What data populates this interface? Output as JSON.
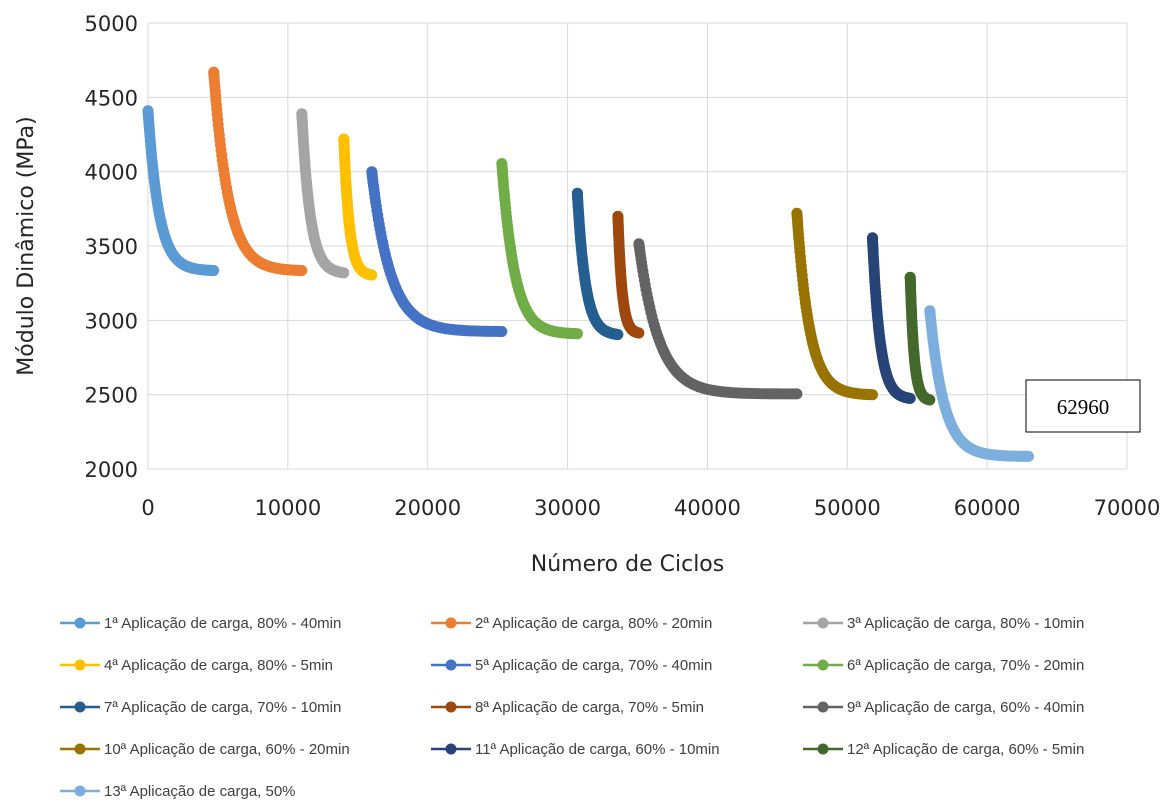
{
  "chart_data": {
    "type": "scatter",
    "xlabel": "Número de Ciclos",
    "ylabel": "Módulo Dinâmico (MPa)",
    "xlim": [
      0,
      70000
    ],
    "ylim": [
      2000,
      5000
    ],
    "xticks": [
      "0",
      "10000",
      "20000",
      "30000",
      "40000",
      "50000",
      "60000",
      "70000"
    ],
    "yticks": [
      "2000",
      "2500",
      "3000",
      "3500",
      "4000",
      "4500",
      "5000"
    ],
    "grid": true,
    "legend_position": "bottom",
    "annotation": "62960",
    "series": [
      {
        "name": "1ª Aplicação de carga, 80% - 40min",
        "color": "#5B9BD5",
        "x_start": 0,
        "x_end": 4700,
        "y_start": 4410,
        "y_end": 3335,
        "k": 6
      },
      {
        "name": "2ª Aplicação de carga, 80% - 20min",
        "color": "#ED7D31",
        "x_start": 4700,
        "x_end": 11000,
        "y_start": 4670,
        "y_end": 3335,
        "k": 6
      },
      {
        "name": "3ª Aplicação de carga, 80% - 10min",
        "color": "#A5A5A5",
        "x_start": 11000,
        "x_end": 14000,
        "y_start": 4390,
        "y_end": 3320,
        "k": 5
      },
      {
        "name": "4ª Aplicação de carga, 80% - 5min",
        "color": "#FFC000",
        "x_start": 14000,
        "x_end": 16000,
        "y_start": 4220,
        "y_end": 3305,
        "k": 5
      },
      {
        "name": "5ª Aplicação de carga, 70% - 40min",
        "color": "#4472C4",
        "x_start": 16000,
        "x_end": 25300,
        "y_start": 4000,
        "y_end": 2925,
        "k": 7
      },
      {
        "name": "6ª Aplicação de carga, 70% - 20min",
        "color": "#70AD47",
        "x_start": 25300,
        "x_end": 30700,
        "y_start": 4055,
        "y_end": 2910,
        "k": 6
      },
      {
        "name": "7ª Aplicação de carga, 70% - 10min",
        "color": "#255E91",
        "x_start": 30700,
        "x_end": 33600,
        "y_start": 3855,
        "y_end": 2905,
        "k": 5
      },
      {
        "name": "8ª Aplicação de carga, 70% - 5min",
        "color": "#9E480E",
        "x_start": 33600,
        "x_end": 35100,
        "y_start": 3700,
        "y_end": 2915,
        "k": 5
      },
      {
        "name": "9ª Aplicação de carga, 60% - 40min",
        "color": "#636363",
        "x_start": 35100,
        "x_end": 46400,
        "y_start": 3515,
        "y_end": 2505,
        "k": 8
      },
      {
        "name": "10ª Aplicação de carga, 60% - 20min",
        "color": "#997300",
        "x_start": 46400,
        "x_end": 51800,
        "y_start": 3720,
        "y_end": 2500,
        "k": 6
      },
      {
        "name": "11ª Aplicação de carga, 60% - 10min",
        "color": "#264478",
        "x_start": 51800,
        "x_end": 54500,
        "y_start": 3555,
        "y_end": 2475,
        "k": 5
      },
      {
        "name": "12ª Aplicação de carga, 60% - 5min",
        "color": "#43682B",
        "x_start": 54500,
        "x_end": 55900,
        "y_start": 3290,
        "y_end": 2465,
        "k": 5
      },
      {
        "name": "13ª Aplicação de carga, 50%",
        "color": "#7CAFDD",
        "x_start": 55900,
        "x_end": 62960,
        "y_start": 3065,
        "y_end": 2085,
        "k": 7
      }
    ]
  }
}
